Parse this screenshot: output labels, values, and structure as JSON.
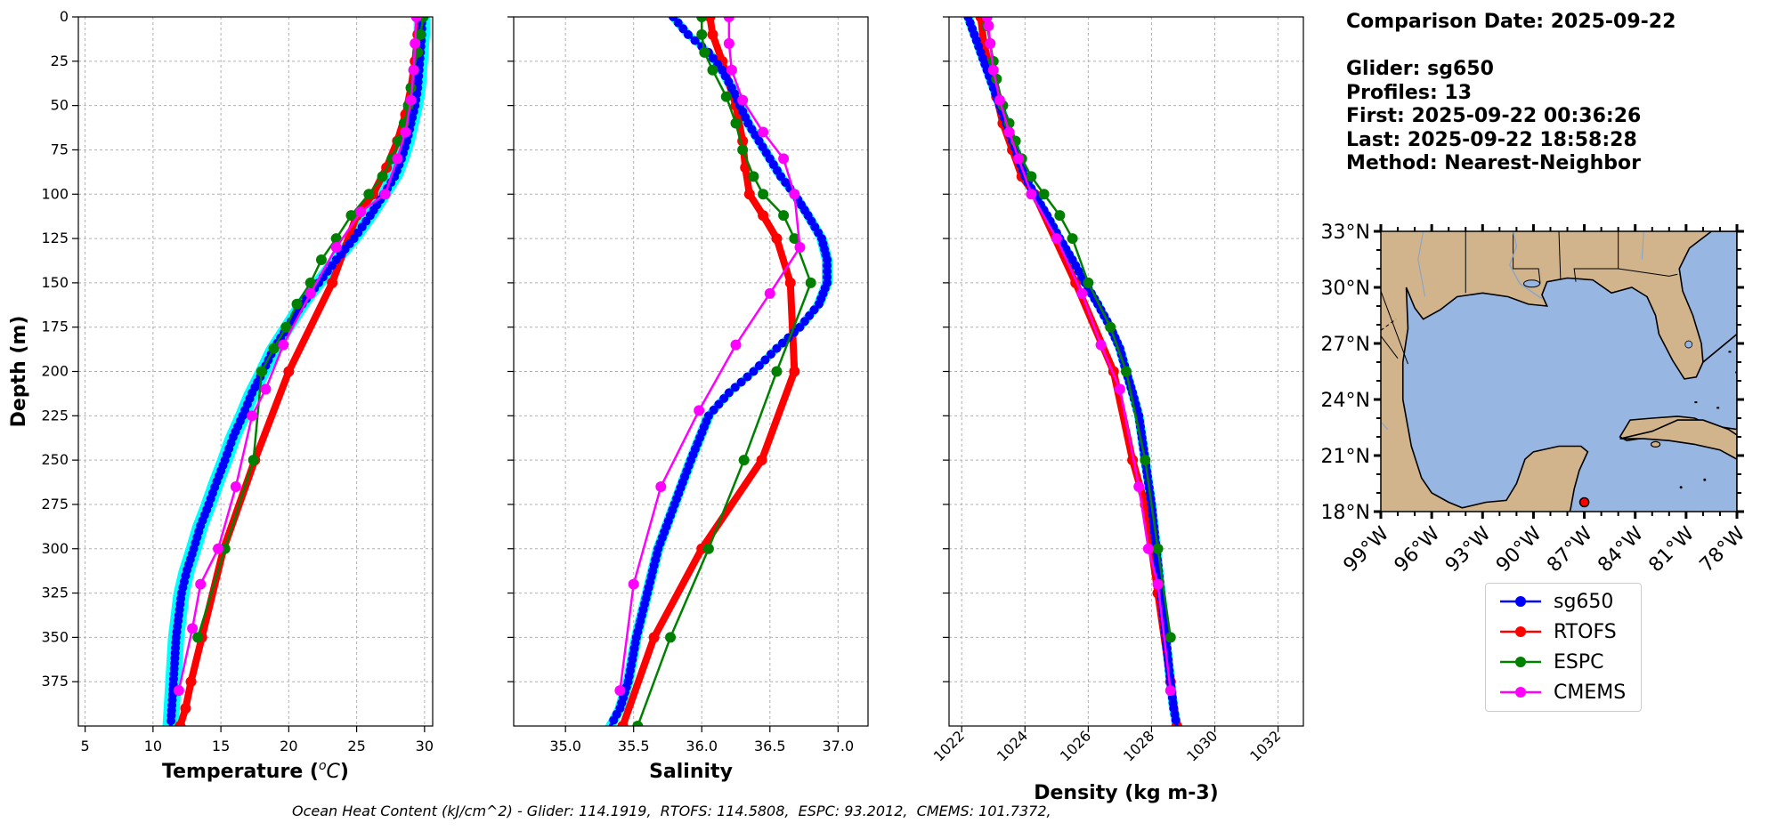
{
  "info": {
    "comparison_date": "Comparison Date: 2025-09-22",
    "glider": "Glider: sg650",
    "profiles": "Profiles: 13",
    "first": "First: 2025-09-22 00:36:26",
    "last": "Last: 2025-09-22 18:58:28",
    "method": "Method: Nearest-Neighbor"
  },
  "footer": "Ocean Heat Content (kJ/cm^2) - Glider: 114.1919,  RTOFS: 114.5808,  ESPC: 93.2012,  CMEMS: 101.7372,",
  "colors": {
    "glider": "#0000ff",
    "glider_band": "#00ffff",
    "rtofs": "#ff0000",
    "espc": "#008000",
    "cmems": "#ff00ff",
    "land": "#d2b48c",
    "ocean": "#97b6e1"
  },
  "legend": [
    {
      "name": "sg650",
      "color": "#0000ff"
    },
    {
      "name": "RTOFS",
      "color": "#ff0000"
    },
    {
      "name": "ESPC",
      "color": "#008000"
    },
    {
      "name": "CMEMS",
      "color": "#ff00ff"
    }
  ],
  "chart_data": [
    {
      "type": "line",
      "xlabel": "Temperature (°C)",
      "ylabel": "Depth (m)",
      "xlim": [
        4.5,
        30.6
      ],
      "ylim": [
        400,
        0
      ],
      "y_inverted": true,
      "grid": true,
      "xticks": [
        5,
        10,
        15,
        20,
        25,
        30
      ],
      "yticks": [
        0,
        25,
        50,
        75,
        100,
        125,
        150,
        175,
        200,
        225,
        250,
        275,
        300,
        325,
        350,
        375
      ],
      "series": [
        {
          "name": "sg650",
          "x": [
            29.8,
            29.8,
            29.7,
            29.6,
            29.5,
            29.3,
            29.0,
            28.7,
            28.3,
            27.8,
            27.0,
            26.0,
            24.8,
            23.5,
            22.2,
            21.0,
            19.9,
            18.9,
            18.1,
            17.3,
            16.6,
            15.9,
            15.3,
            14.7,
            14.1,
            13.5,
            13.0,
            12.5,
            12.1,
            11.7,
            11.3
          ],
          "y": [
            0,
            10,
            20,
            30,
            40,
            50,
            60,
            70,
            80,
            90,
            100,
            112,
            125,
            137,
            150,
            162,
            175,
            187,
            200,
            212,
            225,
            237,
            250,
            262,
            275,
            287,
            300,
            312,
            325,
            350,
            400
          ],
          "band": 0.6
        },
        {
          "name": "RTOFS",
          "x": [
            29.6,
            29.5,
            29.3,
            29.0,
            28.6,
            28.0,
            27.2,
            26.2,
            25.0,
            23.2,
            20.0,
            17.5,
            15.2,
            13.6,
            12.8,
            12.4,
            12.0
          ],
          "y": [
            0,
            10,
            25,
            40,
            55,
            70,
            85,
            100,
            112,
            150,
            200,
            250,
            300,
            350,
            375,
            390,
            400
          ]
        },
        {
          "name": "ESPC",
          "x": [
            29.9,
            29.7,
            29.5,
            29.2,
            29.0,
            28.8,
            28.5,
            28.1,
            27.6,
            26.9,
            25.9,
            24.6,
            23.5,
            22.4,
            21.6,
            20.6,
            19.8,
            18.9,
            18.0,
            17.4,
            15.3,
            13.3
          ],
          "y": [
            0,
            10,
            20,
            30,
            40,
            50,
            60,
            70,
            80,
            90,
            100,
            112,
            125,
            137,
            150,
            162,
            175,
            187,
            200,
            250,
            300,
            350
          ]
        },
        {
          "name": "CMEMS",
          "x": [
            29.4,
            29.3,
            29.2,
            29.0,
            28.6,
            28.0,
            27.1,
            25.3,
            23.5,
            21.6,
            19.6,
            18.3,
            17.3,
            16.1,
            14.8,
            13.5,
            12.9,
            11.9
          ],
          "y": [
            0,
            15,
            30,
            47,
            65,
            80,
            100,
            110,
            130,
            156,
            185,
            210,
            225,
            265,
            300,
            320,
            345,
            380
          ]
        }
      ]
    },
    {
      "type": "line",
      "xlabel": "Salinity",
      "ylabel": "",
      "xlim": [
        34.62,
        37.22
      ],
      "ylim": [
        400,
        0
      ],
      "y_inverted": true,
      "grid": true,
      "xticks": [
        35.0,
        35.5,
        36.0,
        36.5,
        37.0
      ],
      "series": [
        {
          "name": "sg650",
          "x": [
            35.79,
            35.9,
            36.05,
            36.15,
            36.22,
            36.28,
            36.34,
            36.42,
            36.5,
            36.58,
            36.68,
            36.78,
            36.88,
            36.92,
            36.92,
            36.86,
            36.72,
            36.55,
            36.38,
            36.2,
            36.05,
            35.92,
            35.8,
            35.68,
            35.6,
            35.52,
            35.46,
            35.4,
            35.33
          ],
          "y": [
            0,
            10,
            20,
            30,
            40,
            50,
            60,
            70,
            80,
            90,
            100,
            112,
            125,
            137,
            150,
            162,
            175,
            187,
            200,
            212,
            225,
            250,
            275,
            300,
            325,
            350,
            375,
            390,
            400
          ],
          "band": 0.04
        },
        {
          "name": "RTOFS",
          "x": [
            36.06,
            36.08,
            36.15,
            36.25,
            36.3,
            36.32,
            36.35,
            36.45,
            36.55,
            36.65,
            36.68,
            36.44,
            36.0,
            35.65,
            35.42
          ],
          "y": [
            0,
            10,
            25,
            50,
            70,
            85,
            100,
            112,
            125,
            150,
            200,
            250,
            300,
            350,
            400
          ]
        },
        {
          "name": "ESPC",
          "x": [
            36.0,
            36.0,
            36.02,
            36.08,
            36.18,
            36.25,
            36.3,
            36.38,
            36.45,
            36.6,
            36.68,
            36.8,
            36.55,
            36.31,
            36.05,
            35.77,
            35.53
          ],
          "y": [
            0,
            10,
            20,
            30,
            45,
            60,
            75,
            90,
            100,
            112,
            125,
            150,
            200,
            250,
            300,
            350,
            400
          ]
        },
        {
          "name": "CMEMS",
          "x": [
            36.2,
            36.2,
            36.22,
            36.3,
            36.45,
            36.6,
            36.68,
            36.72,
            36.5,
            36.25,
            35.98,
            35.7,
            35.5,
            35.4
          ],
          "y": [
            0,
            15,
            30,
            47,
            65,
            80,
            100,
            130,
            156,
            185,
            222,
            265,
            320,
            380
          ]
        }
      ]
    },
    {
      "type": "line",
      "xlabel": "Density (kg m-3)",
      "ylabel": "",
      "xlim": [
        1021.6,
        1032.8
      ],
      "ylim": [
        400,
        0
      ],
      "y_inverted": true,
      "grid": true,
      "xticks": [
        1022,
        1024,
        1026,
        1028,
        1030,
        1032
      ],
      "series": [
        {
          "name": "sg650",
          "x": [
            1022.2,
            1022.4,
            1022.6,
            1022.8,
            1023.0,
            1023.2,
            1023.4,
            1023.6,
            1023.8,
            1024.0,
            1024.3,
            1024.7,
            1025.1,
            1025.5,
            1025.9,
            1026.3,
            1026.7,
            1027.0,
            1027.2,
            1027.4,
            1027.6,
            1027.8,
            1028.0,
            1028.15,
            1028.3,
            1028.45,
            1028.6,
            1028.7,
            1028.8
          ],
          "y": [
            0,
            10,
            20,
            30,
            40,
            50,
            60,
            70,
            80,
            90,
            100,
            112,
            125,
            137,
            150,
            162,
            175,
            187,
            200,
            212,
            225,
            250,
            275,
            300,
            325,
            350,
            375,
            390,
            400
          ],
          "band": 0.15
        },
        {
          "name": "RTOFS",
          "x": [
            1022.6,
            1022.7,
            1022.9,
            1023.1,
            1023.3,
            1023.6,
            1023.9,
            1024.3,
            1025.6,
            1026.8,
            1027.4,
            1027.8,
            1028.2,
            1028.6,
            1028.8
          ],
          "y": [
            0,
            15,
            30,
            45,
            60,
            75,
            90,
            100,
            150,
            200,
            250,
            275,
            325,
            375,
            400
          ]
        },
        {
          "name": "ESPC",
          "x": [
            1022.8,
            1022.8,
            1022.9,
            1023.0,
            1023.1,
            1023.3,
            1023.5,
            1023.7,
            1023.9,
            1024.2,
            1024.6,
            1025.1,
            1025.5,
            1026.0,
            1026.7,
            1027.2,
            1027.8,
            1028.2,
            1028.6
          ],
          "y": [
            0,
            5,
            15,
            25,
            35,
            50,
            60,
            70,
            80,
            90,
            100,
            112,
            125,
            150,
            175,
            200,
            250,
            300,
            350
          ]
        },
        {
          "name": "CMEMS",
          "x": [
            1022.8,
            1022.85,
            1022.9,
            1023.0,
            1023.2,
            1023.5,
            1023.8,
            1024.2,
            1025.0,
            1025.8,
            1026.4,
            1027.0,
            1027.6,
            1027.9,
            1028.2,
            1028.6
          ],
          "y": [
            0,
            5,
            15,
            30,
            47,
            65,
            80,
            100,
            125,
            156,
            185,
            210,
            265,
            300,
            320,
            380
          ]
        }
      ]
    },
    {
      "type": "map",
      "lat_ticks": [
        "33°N",
        "30°N",
        "27°N",
        "24°N",
        "21°N",
        "18°N"
      ],
      "lon_ticks": [
        "99°W",
        "96°W",
        "93°W",
        "90°W",
        "87°W",
        "84°W",
        "81°W",
        "78°W"
      ],
      "lat_range": [
        18,
        33
      ],
      "lon_range": [
        -99,
        -78
      ],
      "marker": {
        "lon": -87.0,
        "lat": 18.5
      }
    }
  ]
}
